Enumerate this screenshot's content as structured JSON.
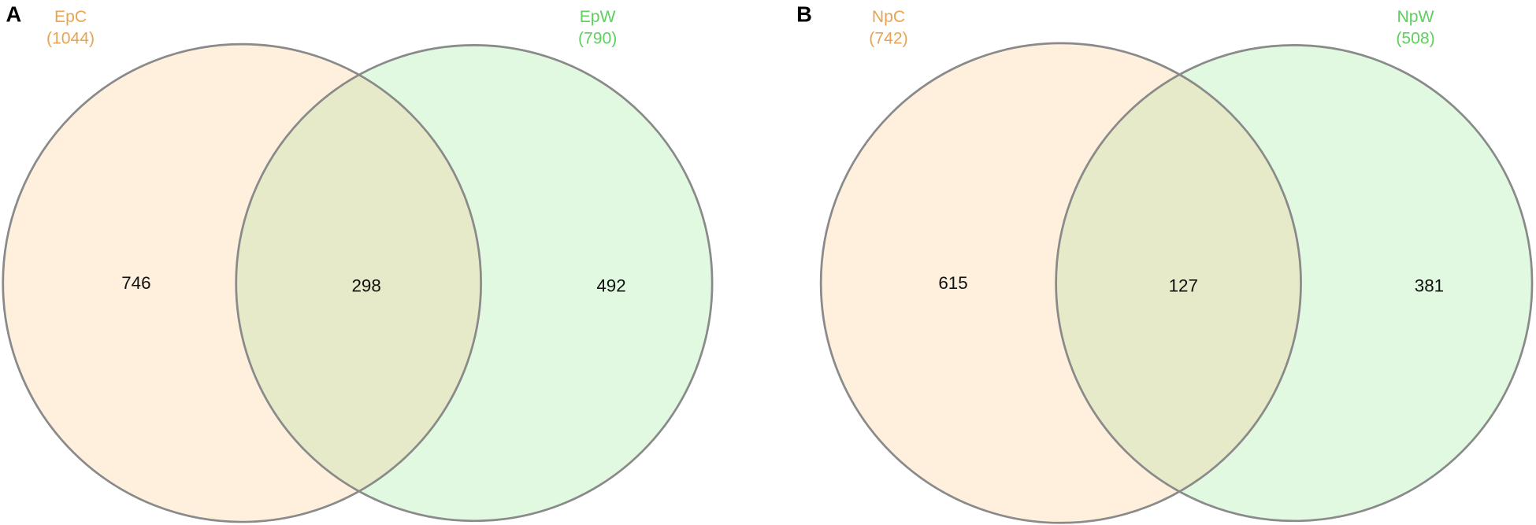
{
  "panels": [
    {
      "label": "A",
      "sets": [
        {
          "name": "EpC",
          "count": "(1044)"
        },
        {
          "name": "EpW",
          "count": "(790)"
        }
      ],
      "regions": {
        "left_only": "746",
        "both": "298",
        "right_only": "492"
      }
    },
    {
      "label": "B",
      "sets": [
        {
          "name": "NpC",
          "count": "(742)"
        },
        {
          "name": "NpW",
          "count": "(508)"
        }
      ],
      "regions": {
        "left_only": "615",
        "both": "127",
        "right_only": "381"
      }
    }
  ]
}
